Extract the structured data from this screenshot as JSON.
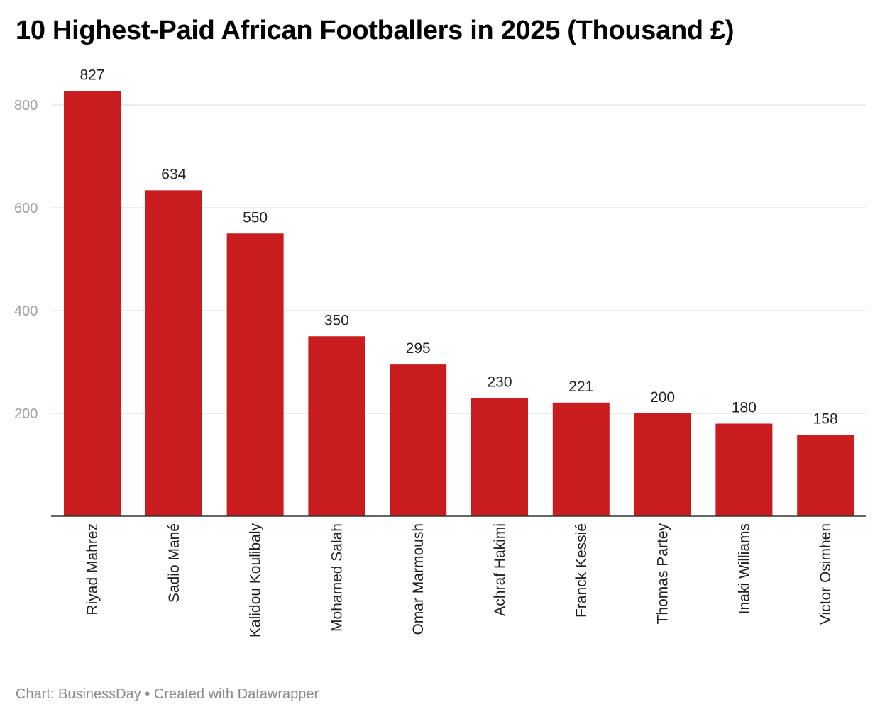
{
  "chart_data": {
    "type": "bar",
    "title": "10 Highest-Paid African Footballers in 2025 (Thousand £)",
    "xlabel": "",
    "ylabel": "",
    "categories": [
      "Riyad Mahrez",
      "Sadio Mané",
      "Kalidou Koulibaly",
      "Mohamed Salah",
      "Omar Marmoush",
      "Achraf Hakimi",
      "Franck Kessié",
      "Thomas Partey",
      "Inaki Williams",
      "Victor Osimhen"
    ],
    "values": [
      827,
      634,
      550,
      350,
      295,
      230,
      221,
      200,
      180,
      158
    ],
    "ylim": [
      0,
      850
    ],
    "yticks": [
      200,
      400,
      600,
      800
    ],
    "grid": true,
    "legend": "none",
    "bar_color": "#c81c1f"
  },
  "footer": {
    "source": "Chart: BusinessDay • Created with Datawrapper"
  }
}
